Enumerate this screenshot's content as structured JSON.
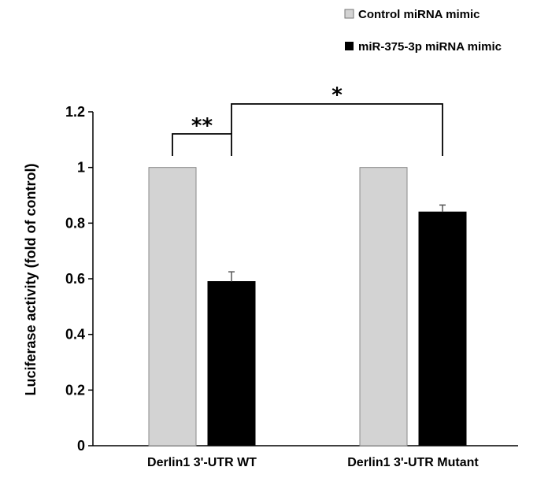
{
  "chart_data": {
    "type": "bar",
    "categories": [
      "Derlin1 3'-UTR WT",
      "Derlin1 3'-UTR Mutant"
    ],
    "series": [
      {
        "name": "Control miRNA mimic",
        "values": [
          1.0,
          1.0
        ],
        "errors": [
          0,
          0
        ],
        "color": "#d3d3d3"
      },
      {
        "name": "miR-375-3p miRNA mimic",
        "values": [
          0.59,
          0.84
        ],
        "errors": [
          0.035,
          0.025
        ],
        "color": "#000000"
      }
    ],
    "ylabel": "Luciferase activity (fold of control)",
    "xlabel": "",
    "ylim": [
      0,
      1.2
    ],
    "yticks": [
      "0",
      "0.2",
      "0.4",
      "0.6",
      "0.8",
      "1",
      "1.2"
    ],
    "grid": false,
    "legend_position": "top-right",
    "significance": [
      {
        "label": "**",
        "between": "Derlin1 3'-UTR WT control vs miR-375-3p mimic"
      },
      {
        "label": "*",
        "between": "WT miR-375-3p mimic vs Mutant miR-375-3p mimic"
      }
    ]
  }
}
